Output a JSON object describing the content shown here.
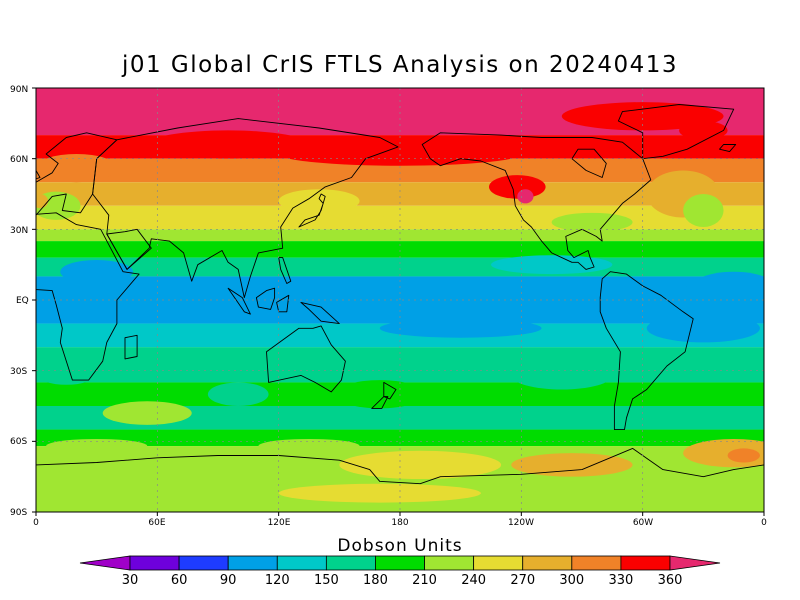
{
  "title": "j01 Global CrIS FTLS Analysis on 20240413",
  "lat_labels": [
    "90N",
    "60N",
    "30N",
    "EQ",
    "30S",
    "60S",
    "90S"
  ],
  "lon_labels": [
    "0",
    "60E",
    "120E",
    "180",
    "120W",
    "60W",
    "0"
  ],
  "colorbar": {
    "title": "Dobson Units",
    "levels": [
      "30",
      "60",
      "90",
      "120",
      "150",
      "180",
      "210",
      "240",
      "270",
      "300",
      "330",
      "360"
    ],
    "colors": [
      "#a000c8",
      "#6e00dc",
      "#1e3cff",
      "#00a0e6",
      "#00c8c8",
      "#00d28c",
      "#00dc00",
      "#a0e632",
      "#e6dc32",
      "#e6af2d",
      "#f08228",
      "#fa0000",
      "#e6286e"
    ]
  },
  "colors": {
    "grid": "#888888",
    "coast": "#000000"
  }
}
